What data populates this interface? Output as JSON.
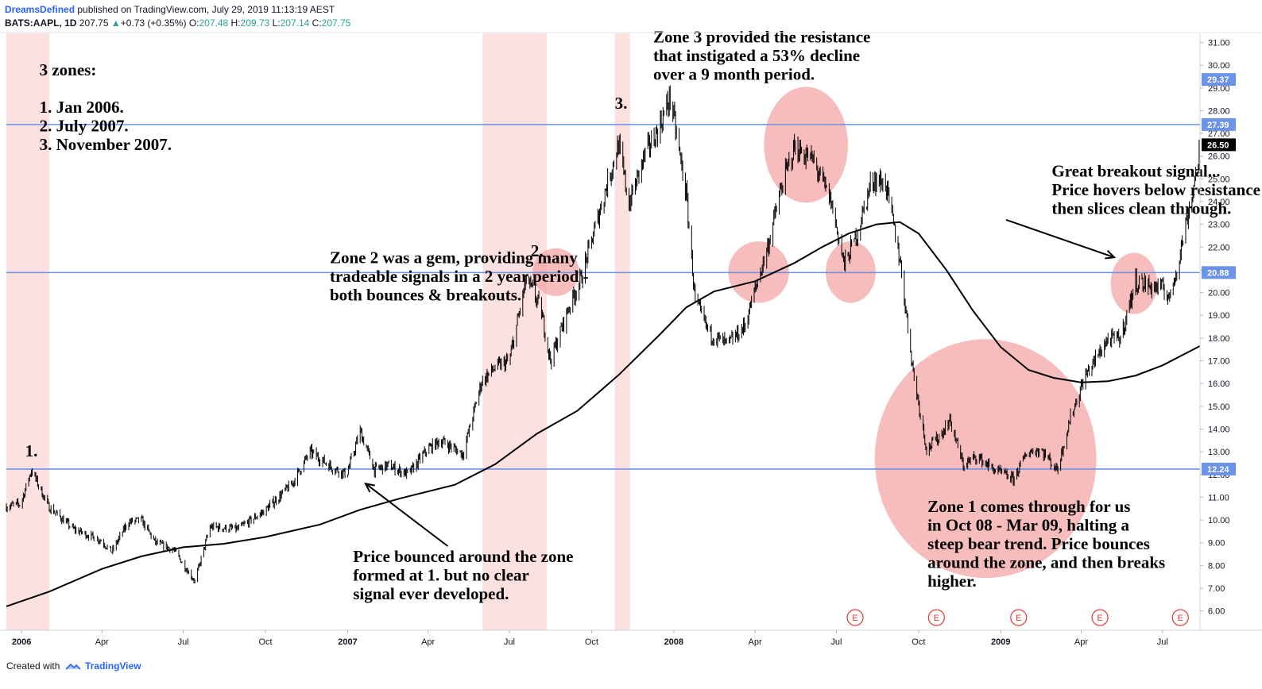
{
  "header": {
    "author": "DreamsDefined",
    "published": "published on TradingView.com, July 29, 2019 11:13:19 AEST",
    "symbol": "BATS:AAPL, 1D",
    "last": "207.75",
    "arrow": "▲",
    "change": "+0.73 (+0.35%)",
    "o_label": "O:",
    "o": "207.48",
    "h_label": "H:",
    "h": "209.73",
    "l_label": "L:",
    "l": "207.14",
    "c_label": "C:",
    "c": "207.75"
  },
  "footer": {
    "created_with": "Created with",
    "brand": "TradingView"
  },
  "colors": {
    "candle": "#000000",
    "zone_band": "#fde0e0",
    "level_line": "#6b93e8",
    "level_label_bg": "#6b93e8",
    "circle": "#f4a6a6",
    "ma": "#000000",
    "last_price_bg": "#000000",
    "earnings": "#e53935"
  },
  "chart_data": {
    "type": "candlestick",
    "x_axis_labels": [
      "2006",
      "Apr",
      "Jul",
      "Oct",
      "2007",
      "Apr",
      "Jul",
      "Oct",
      "2008",
      "Apr",
      "Jul",
      "Oct",
      "2009",
      "Apr",
      "Jul"
    ],
    "y_axis_labels": [
      "31.00",
      "30.00",
      "29.00",
      "28.00",
      "27.00",
      "26.00",
      "25.00",
      "24.00",
      "23.00",
      "22.00",
      "21.00",
      "20.00",
      "19.00",
      "18.00",
      "17.00",
      "16.00",
      "15.00",
      "14.00",
      "13.00",
      "12.00",
      "11.00",
      "10.00",
      "9.00",
      "8.00",
      "7.00",
      "6.00"
    ],
    "x_range": [
      "2005-12-15",
      "2009-08-12"
    ],
    "y_range": [
      5.15,
      31.4
    ],
    "highlighted_levels": [
      {
        "value": 29.37,
        "label": "29.37",
        "line": false
      },
      {
        "value": 27.39,
        "label": "27.39",
        "line": true
      },
      {
        "value": 20.88,
        "label": "20.88",
        "line": true
      },
      {
        "value": 12.24,
        "label": "12.24",
        "line": true
      }
    ],
    "last_price": {
      "value": 26.5,
      "label": "26.50"
    },
    "zone_bands": [
      [
        "2005-12-15",
        "2006-02-01"
      ],
      [
        "2007-06-01",
        "2007-08-12"
      ],
      [
        "2007-10-27",
        "2007-11-13"
      ]
    ],
    "zone_markers": [
      {
        "label": "1.",
        "date": "2006-01-12",
        "value": 12.3
      },
      {
        "label": "2.",
        "date": "2007-08-01",
        "value": 21.1
      },
      {
        "label": "3.",
        "date": "2007-11-03",
        "value": 27.6
      }
    ],
    "circles": [
      {
        "date": "2007-08-22",
        "value": 20.9,
        "rx_days": 26,
        "ry_value": 1.05
      },
      {
        "date": "2008-04-05",
        "value": 20.9,
        "rx_days": 34,
        "ry_value": 1.35
      },
      {
        "date": "2008-05-28",
        "value": 26.5,
        "rx_days": 47,
        "ry_value": 2.55
      },
      {
        "date": "2008-07-17",
        "value": 20.9,
        "rx_days": 28,
        "ry_value": 1.35
      },
      {
        "date": "2008-12-15",
        "value": 12.7,
        "rx_days": 124,
        "ry_value": 5.25
      },
      {
        "date": "2009-05-30",
        "value": 20.4,
        "rx_days": 26,
        "ry_value": 1.35
      }
    ],
    "earnings_dates": [
      "2008-07-22",
      "2008-10-21",
      "2009-01-21",
      "2009-04-22",
      "2009-07-21"
    ],
    "earnings_label": "E",
    "annotations": [
      {
        "lines": [
          "3 zones:",
          "",
          "1. Jan 2006.",
          "2. July 2007.",
          "3. November 2007."
        ],
        "date": "2006-01-21",
        "value": 29.55
      },
      {
        "lines": [
          "Zone 2 was a gem, providing many",
          "tradeable signals in a 2 year period -",
          "both bounces & breakouts."
        ],
        "date": "2006-12-12",
        "value": 21.3
      },
      {
        "lines": [
          "Zone 3 provided the resistance",
          "that instigated a 53% decline",
          "over a 9 month period."
        ],
        "date": "2007-12-09",
        "value": 31.0
      },
      {
        "lines": [
          "Great breakout signal...",
          "Price hovers below resistance",
          "then slices clean through."
        ],
        "date": "2009-02-27",
        "value": 25.1
      },
      {
        "lines": [
          "Price bounced around the zone",
          "formed at 1. but no clear",
          "signal ever developed."
        ],
        "date": "2007-01-07",
        "value": 8.15
      },
      {
        "lines": [
          "Zone 1 comes through for us",
          "in Oct 08 - Mar 09, halting a",
          "steep bear trend. Price bounces",
          "around the zone, and then breaks",
          "higher."
        ],
        "date": "2008-10-11",
        "value": 10.35
      }
    ],
    "arrows": [
      {
        "from": [
          "2007-04-23",
          8.85
        ],
        "to": [
          "2007-01-21",
          11.6
        ]
      },
      {
        "from": [
          "2009-01-07",
          23.2
        ],
        "to": [
          "2009-05-08",
          21.55
        ]
      }
    ],
    "ma_points": [
      [
        "2005-12-15",
        6.2
      ],
      [
        "2006-02-01",
        6.85
      ],
      [
        "2006-04-01",
        7.85
      ],
      [
        "2006-05-15",
        8.4
      ],
      [
        "2006-07-01",
        8.8
      ],
      [
        "2006-08-15",
        8.95
      ],
      [
        "2006-10-01",
        9.25
      ],
      [
        "2006-12-01",
        9.8
      ],
      [
        "2007-01-15",
        10.45
      ],
      [
        "2007-03-01",
        10.95
      ],
      [
        "2007-05-01",
        11.55
      ],
      [
        "2007-06-15",
        12.45
      ],
      [
        "2007-08-01",
        13.8
      ],
      [
        "2007-09-15",
        14.8
      ],
      [
        "2007-11-01",
        16.4
      ],
      [
        "2007-12-15",
        18.1
      ],
      [
        "2008-01-15",
        19.35
      ],
      [
        "2008-02-15",
        20.05
      ],
      [
        "2008-04-01",
        20.5
      ],
      [
        "2008-05-15",
        21.3
      ],
      [
        "2008-06-15",
        22.0
      ],
      [
        "2008-07-15",
        22.6
      ],
      [
        "2008-08-15",
        23.0
      ],
      [
        "2008-09-10",
        23.1
      ],
      [
        "2008-10-01",
        22.6
      ],
      [
        "2008-11-01",
        21.0
      ],
      [
        "2008-12-01",
        19.2
      ],
      [
        "2009-01-01",
        17.6
      ],
      [
        "2009-02-01",
        16.6
      ],
      [
        "2009-03-01",
        16.25
      ],
      [
        "2009-04-01",
        16.05
      ],
      [
        "2009-05-01",
        16.1
      ],
      [
        "2009-06-01",
        16.35
      ],
      [
        "2009-07-01",
        16.8
      ],
      [
        "2009-08-12",
        17.65
      ]
    ],
    "price_path": [
      [
        "2005-12-15",
        10.6
      ],
      [
        "2005-12-31",
        10.7
      ],
      [
        "2006-01-12",
        12.2
      ],
      [
        "2006-01-31",
        10.6
      ],
      [
        "2006-02-28",
        9.6
      ],
      [
        "2006-03-31",
        9.1
      ],
      [
        "2006-04-12",
        8.6
      ],
      [
        "2006-04-30",
        9.9
      ],
      [
        "2006-05-15",
        10.0
      ],
      [
        "2006-05-31",
        9.0
      ],
      [
        "2006-06-20",
        8.7
      ],
      [
        "2006-07-14",
        7.3
      ],
      [
        "2006-07-31",
        9.7
      ],
      [
        "2006-08-31",
        9.6
      ],
      [
        "2006-09-30",
        10.4
      ],
      [
        "2006-10-31",
        11.6
      ],
      [
        "2006-11-20",
        13.0
      ],
      [
        "2006-12-15",
        12.3
      ],
      [
        "2006-12-31",
        12.0
      ],
      [
        "2007-01-15",
        13.9
      ],
      [
        "2007-01-31",
        12.2
      ],
      [
        "2007-02-15",
        12.4
      ],
      [
        "2007-03-10",
        12.0
      ],
      [
        "2007-03-31",
        13.1
      ],
      [
        "2007-04-15",
        13.5
      ],
      [
        "2007-05-10",
        12.9
      ],
      [
        "2007-05-31",
        16.1
      ],
      [
        "2007-06-15",
        16.7
      ],
      [
        "2007-07-01",
        17.0
      ],
      [
        "2007-07-20",
        20.6
      ],
      [
        "2007-08-05",
        19.3
      ],
      [
        "2007-08-16",
        17.0
      ],
      [
        "2007-09-05",
        19.3
      ],
      [
        "2007-09-20",
        20.7
      ],
      [
        "2007-10-15",
        24.3
      ],
      [
        "2007-10-31",
        26.5
      ],
      [
        "2007-11-12",
        23.9
      ],
      [
        "2007-11-30",
        26.1
      ],
      [
        "2007-12-15",
        27.2
      ],
      [
        "2007-12-28",
        28.6
      ],
      [
        "2008-01-15",
        24.3
      ],
      [
        "2008-01-25",
        19.6
      ],
      [
        "2008-02-10",
        18.2
      ],
      [
        "2008-03-01",
        17.7
      ],
      [
        "2008-03-20",
        18.5
      ],
      [
        "2008-04-15",
        22.0
      ],
      [
        "2008-05-01",
        24.7
      ],
      [
        "2008-05-15",
        26.4
      ],
      [
        "2008-06-05",
        25.8
      ],
      [
        "2008-06-25",
        24.0
      ],
      [
        "2008-07-10",
        21.2
      ],
      [
        "2008-07-25",
        22.7
      ],
      [
        "2008-08-10",
        25.0
      ],
      [
        "2008-08-25",
        24.8
      ],
      [
        "2008-09-10",
        21.5
      ],
      [
        "2008-09-25",
        16.5
      ],
      [
        "2008-10-10",
        13.1
      ],
      [
        "2008-10-25",
        13.7
      ],
      [
        "2008-11-05",
        14.4
      ],
      [
        "2008-11-20",
        12.4
      ],
      [
        "2008-12-05",
        12.8
      ],
      [
        "2008-12-25",
        12.2
      ],
      [
        "2009-01-15",
        11.8
      ],
      [
        "2009-01-31",
        13.0
      ],
      [
        "2009-02-15",
        13.1
      ],
      [
        "2009-03-05",
        12.2
      ],
      [
        "2009-03-20",
        14.5
      ],
      [
        "2009-04-05",
        16.3
      ],
      [
        "2009-04-30",
        17.9
      ],
      [
        "2009-05-15",
        18.0
      ],
      [
        "2009-06-01",
        20.5
      ],
      [
        "2009-06-15",
        20.3
      ],
      [
        "2009-06-30",
        20.2
      ],
      [
        "2009-07-10",
        19.8
      ],
      [
        "2009-07-25",
        22.6
      ],
      [
        "2009-08-05",
        24.7
      ],
      [
        "2009-08-12",
        26.5
      ]
    ]
  }
}
